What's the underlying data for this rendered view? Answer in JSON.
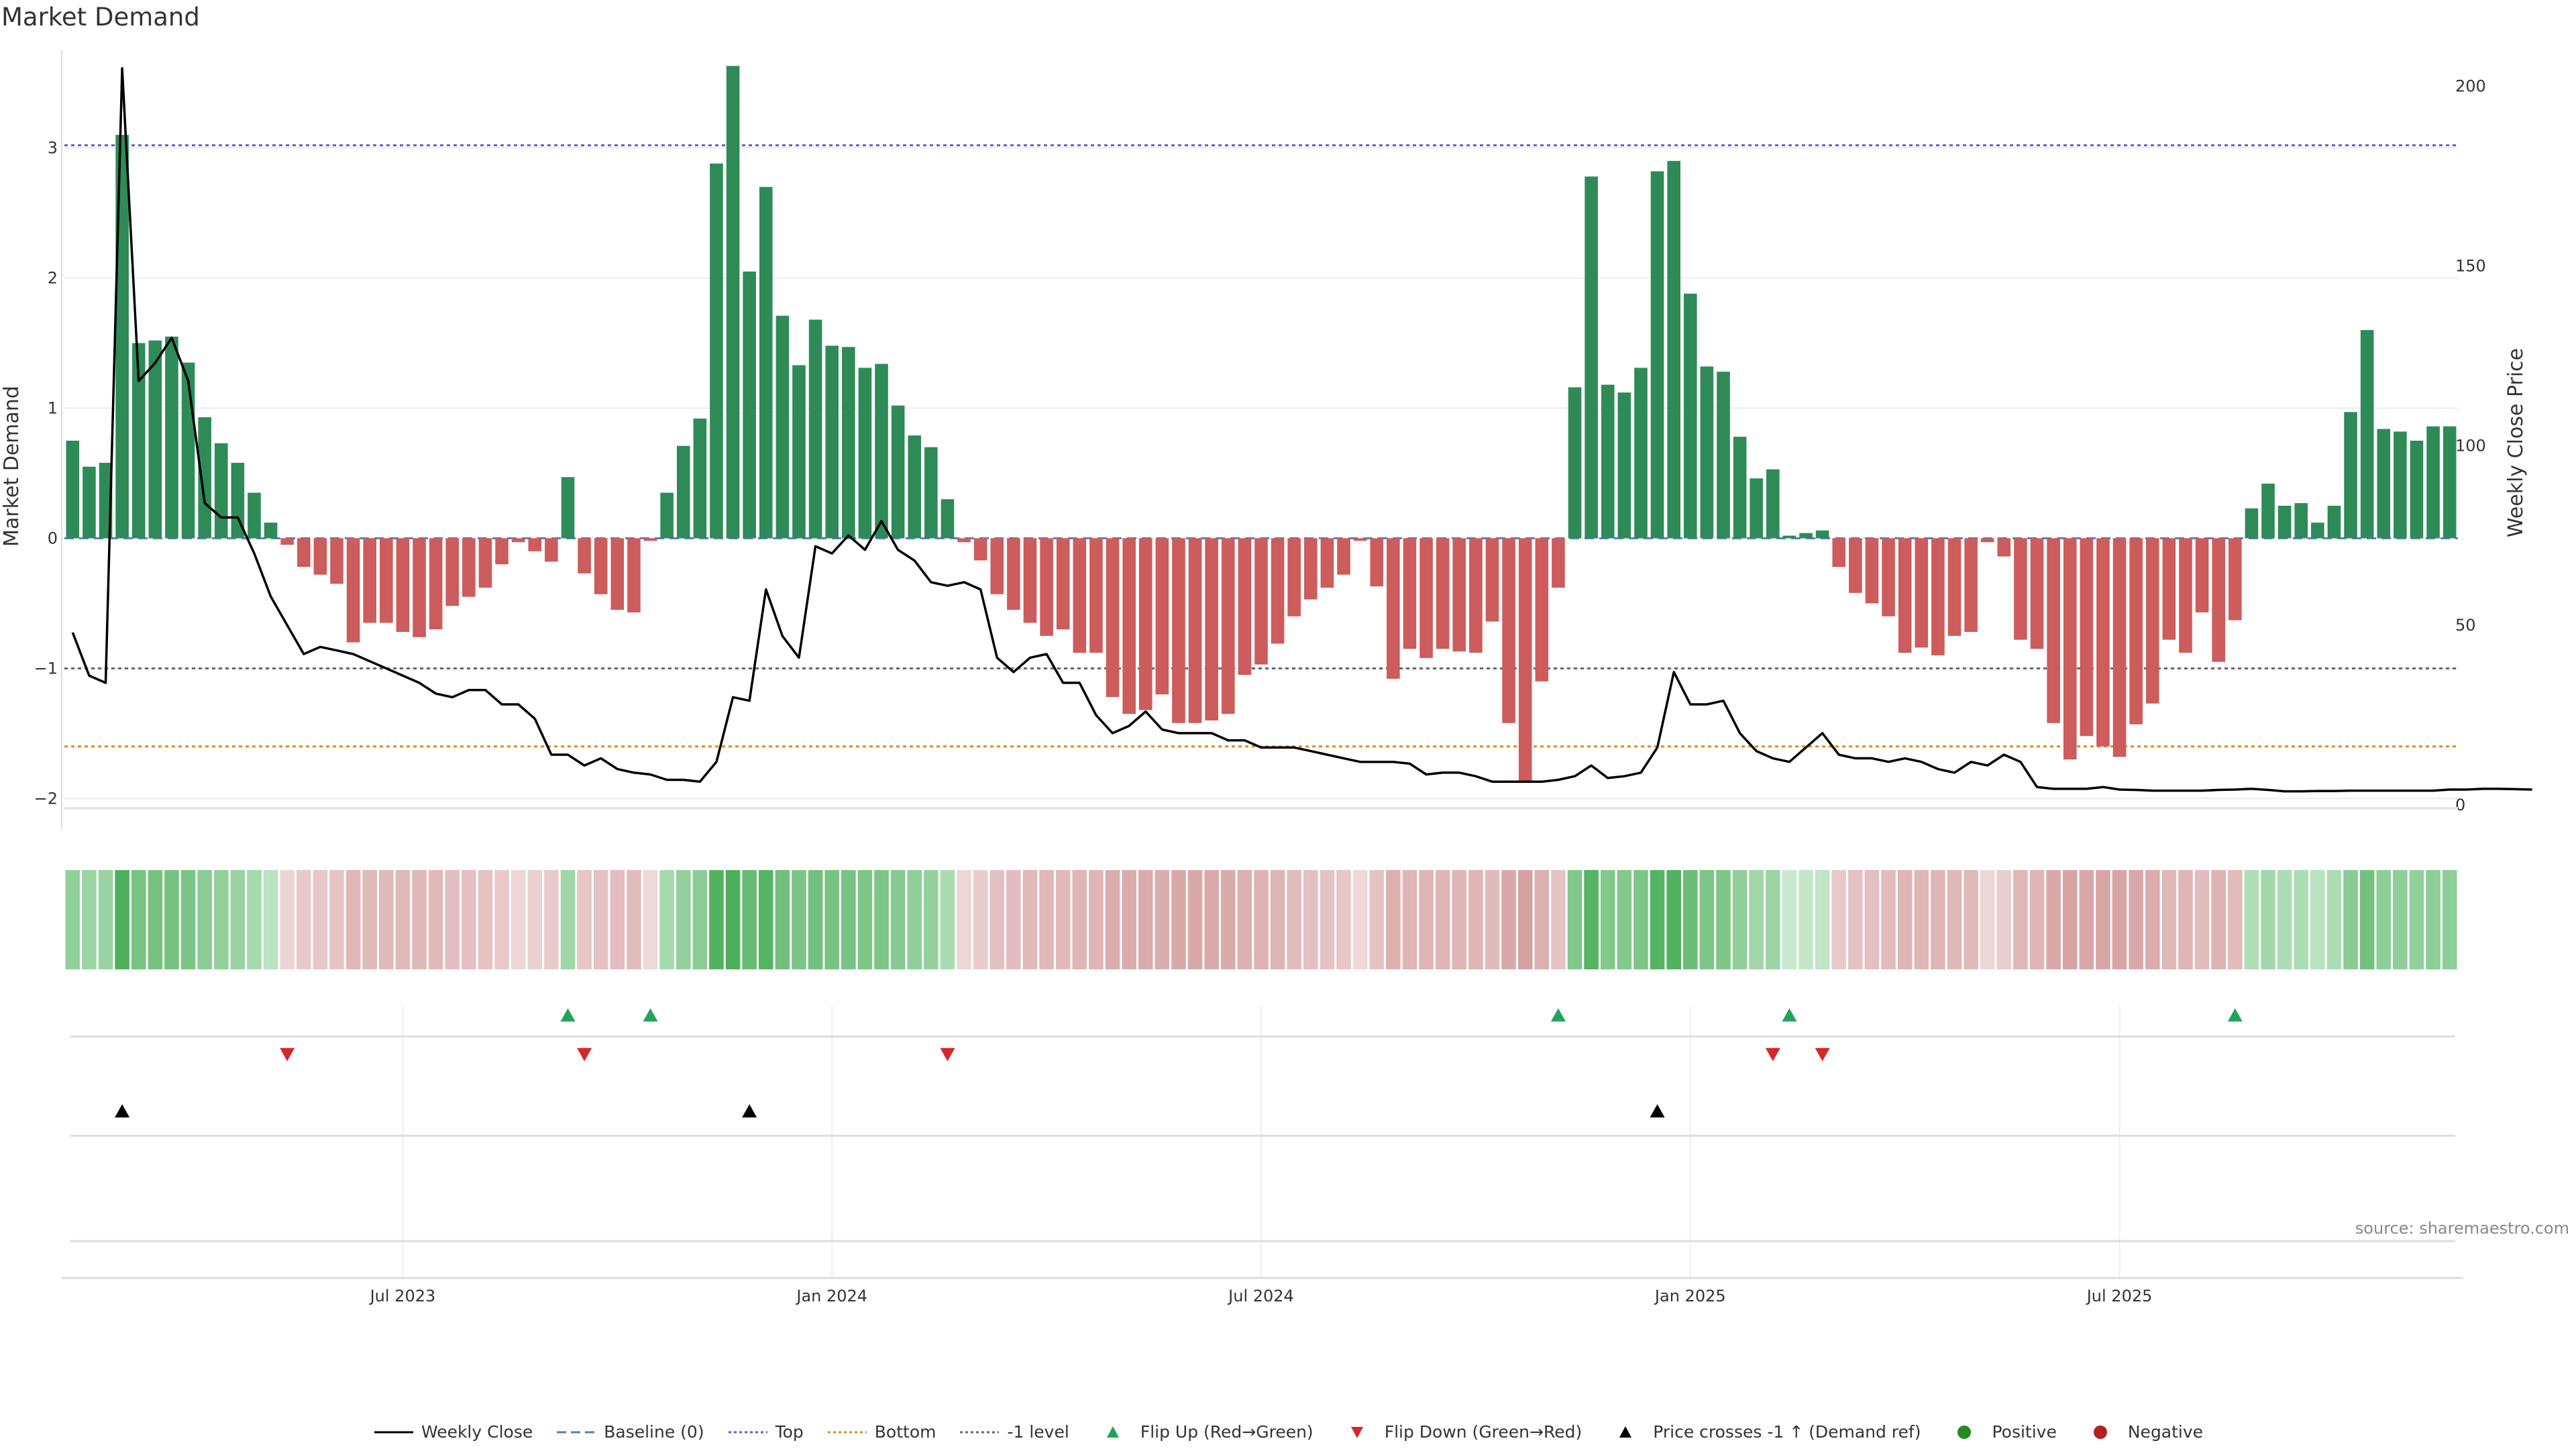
{
  "chart_data": {
    "type": "bar",
    "title": "Market Demand",
    "y_left_label": "Market Demand",
    "y_right_label": "Weekly Close Price",
    "y_left_ticks": [
      -2,
      -1,
      0,
      1,
      2,
      3
    ],
    "y_right_ticks": [
      0,
      50,
      100,
      150,
      200
    ],
    "y_left_range": [
      -2.05,
      3.75
    ],
    "y_right_range": [
      0,
      210
    ],
    "levels": {
      "top": 3.02,
      "bottom": -1.6,
      "minus_one": -1
    },
    "x_tick_labels": [
      "Jul 2023",
      "Jan 2024",
      "Jul 2024",
      "Jan 2025",
      "Jul 2025"
    ],
    "x_tick_week_index": [
      20.5,
      46.5,
      72.5,
      98.5,
      124.5
    ],
    "series": [
      {
        "name": "Market Demand",
        "values": [
          0.75,
          0.55,
          0.58,
          3.1,
          1.5,
          1.52,
          1.55,
          1.35,
          0.93,
          0.73,
          0.58,
          0.35,
          0.12,
          -0.05,
          -0.22,
          -0.28,
          -0.35,
          -0.8,
          -0.65,
          -0.65,
          -0.72,
          -0.76,
          -0.7,
          -0.52,
          -0.45,
          -0.38,
          -0.2,
          -0.03,
          -0.1,
          -0.18,
          0.47,
          -0.27,
          -0.43,
          -0.55,
          -0.57,
          -0.02,
          0.35,
          0.71,
          0.92,
          2.88,
          3.63,
          2.05,
          2.7,
          1.71,
          1.33,
          1.68,
          1.48,
          1.47,
          1.31,
          1.34,
          1.02,
          0.79,
          0.7,
          0.3,
          -0.03,
          -0.17,
          -0.43,
          -0.55,
          -0.65,
          -0.75,
          -0.7,
          -0.88,
          -0.88,
          -1.22,
          -1.35,
          -1.32,
          -1.2,
          -1.42,
          -1.42,
          -1.4,
          -1.35,
          -1.05,
          -0.97,
          -0.81,
          -0.6,
          -0.47,
          -0.38,
          -0.28,
          -0.02,
          -0.37,
          -1.08,
          -0.85,
          -0.92,
          -0.85,
          -0.87,
          -0.88,
          -0.64,
          -1.42,
          -1.88,
          -1.1,
          -0.38,
          1.16,
          2.78,
          1.18,
          1.12,
          1.31,
          2.82,
          2.9,
          1.88,
          1.32,
          1.28,
          0.78,
          0.46,
          0.53,
          0.02,
          0.04,
          0.06,
          -0.22,
          -0.42,
          -0.5,
          -0.6,
          -0.88,
          -0.84,
          -0.9,
          -0.75,
          -0.72,
          -0.03,
          -0.14,
          -0.78,
          -0.85,
          -1.42,
          -1.7,
          -1.52,
          -1.6,
          -1.68,
          -1.43,
          -1.27,
          -0.78,
          -0.88,
          -0.57,
          -0.95,
          -0.63,
          0.23,
          0.42,
          0.25,
          0.27,
          0.12,
          0.25,
          0.97,
          1.6,
          0.84,
          0.82,
          0.75,
          0.86,
          0.86
        ]
      },
      {
        "name": "Weekly Close",
        "values": [
          48,
          36,
          34,
          205,
          118,
          123,
          130,
          118,
          84,
          80,
          80,
          70,
          58,
          50,
          42,
          44,
          43,
          42,
          40,
          38,
          36,
          34,
          31,
          30,
          32,
          32,
          28,
          28,
          24,
          14,
          14,
          11,
          13,
          10,
          9,
          8.5,
          7,
          7,
          6.5,
          12,
          30,
          29,
          60,
          47,
          41,
          72,
          70,
          75,
          71,
          79,
          71,
          68,
          62,
          61,
          62,
          60,
          41,
          37,
          41,
          42,
          34,
          34,
          25,
          20,
          22,
          26,
          21,
          20,
          20,
          20,
          18,
          18,
          16,
          16,
          16,
          15,
          14,
          13,
          12,
          12,
          12,
          11.5,
          8.5,
          9,
          9,
          8,
          6.5,
          6.5,
          6.5,
          6.5,
          7,
          8,
          11,
          7.5,
          8,
          9,
          16,
          37,
          28,
          28,
          29,
          20,
          15,
          13,
          12,
          16,
          20,
          14,
          13,
          13,
          12,
          13,
          12,
          10,
          9,
          12,
          11,
          14,
          12,
          5,
          4.5,
          4.5,
          4.5,
          5,
          4.3,
          4.2,
          4,
          4,
          4,
          4,
          4.2,
          4.3,
          4.5,
          4.2,
          3.8,
          3.8,
          3.9,
          3.9,
          4,
          4,
          4,
          4,
          4,
          4,
          4.3,
          4.3,
          4.5,
          4.5,
          4.4,
          4.3
        ]
      }
    ],
    "flip_up_weeks": [
      30,
      35,
      90,
      104,
      131
    ],
    "flip_down_weeks": [
      13,
      31,
      53,
      103,
      106
    ],
    "price_cross_weeks": [
      3,
      41,
      96
    ],
    "colors": {
      "positive": "#2e8b57",
      "negative": "#cd5c5c",
      "price": "#000000",
      "baseline": "#4f7fc8",
      "top": "#6a5acd",
      "bottom": "#e08a1e",
      "minus_one": "#666666",
      "flip_up": "#22a35a",
      "flip_down": "#d62728",
      "cross": "#000000",
      "positive_dot": "#228b22",
      "negative_dot": "#b22222",
      "heat_pos_light": "#d3eed8",
      "heat_pos_dark": "#4caf5a",
      "heat_neg_light": "#f2dede",
      "heat_neg_dark": "#cd8f8f"
    },
    "legend_position": "bottom-center",
    "legend": [
      {
        "label": "Weekly Close",
        "marker": "line-solid",
        "color": "#000000"
      },
      {
        "label": "Baseline (0)",
        "marker": "line-dashed",
        "color": "#4f7fc8"
      },
      {
        "label": "Top",
        "marker": "line-dotted",
        "color": "#6a5acd"
      },
      {
        "label": "Bottom",
        "marker": "line-dotted",
        "color": "#e08a1e"
      },
      {
        "label": "-1 level",
        "marker": "line-dotted",
        "color": "#666666"
      },
      {
        "label": "Flip Up (Red→Green)",
        "marker": "triangle-up",
        "color": "#22a35a"
      },
      {
        "label": "Flip Down (Green→Red)",
        "marker": "triangle-down",
        "color": "#d62728"
      },
      {
        "label": "Price crosses -1 ↑ (Demand ref)",
        "marker": "triangle-up",
        "color": "#000000"
      },
      {
        "label": "Positive",
        "marker": "dot",
        "color": "#228b22"
      },
      {
        "label": "Negative",
        "marker": "dot",
        "color": "#b22222"
      }
    ],
    "source": "source: sharemaestro.com"
  }
}
